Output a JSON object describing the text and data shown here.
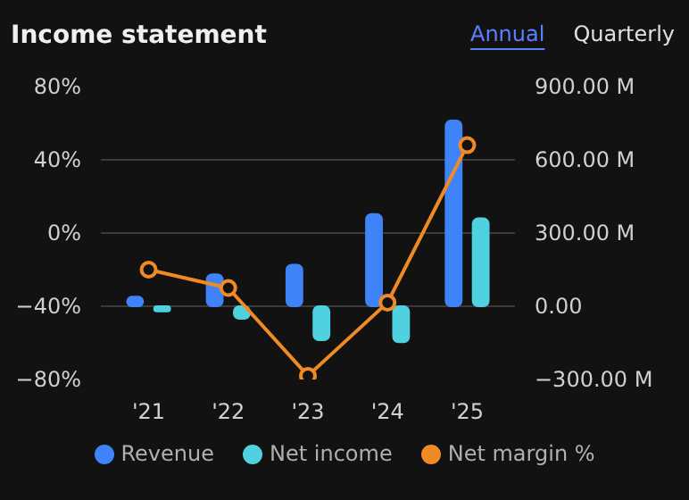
{
  "chart_data": {
    "type": "bar",
    "title": "Income statement",
    "annotations": [
      "Annual",
      "Quarterly"
    ],
    "categories": [
      "'21",
      "'22",
      "'23",
      "'24",
      "'25"
    ],
    "series": [
      {
        "name": "Revenue",
        "color": "#3f83f8",
        "axis": "y2",
        "values": [
          39,
          131,
          170,
          378,
          761
        ]
      },
      {
        "name": "Net income",
        "color": "#4fd1e0",
        "axis": "y2",
        "values": [
          -21,
          -51,
          -139,
          -147,
          360
        ]
      },
      {
        "name": "Net margin %",
        "color": "#f08a24",
        "type": "line",
        "values": [
          -20,
          -30,
          -78,
          -38,
          48
        ]
      }
    ],
    "ylim": [
      -80,
      80
    ],
    "yticks": [
      {
        "value": 80,
        "label": "80%"
      },
      {
        "value": 40,
        "label": "40%"
      },
      {
        "value": 0,
        "label": "0%"
      },
      {
        "value": -40,
        "label": "−40%"
      },
      {
        "value": -80,
        "label": "−80%"
      }
    ],
    "y2lim": [
      -300,
      900
    ],
    "y2ticks": [
      {
        "value": 900,
        "label": "900.00 M"
      },
      {
        "value": 600,
        "label": "600.00 M"
      },
      {
        "value": 300,
        "label": "300.00 M"
      },
      {
        "value": 0,
        "label": "0.00"
      },
      {
        "value": -300,
        "label": "−300.00 M"
      }
    ],
    "grid": "y",
    "legend": "bottom",
    "marker": "circle",
    "line_style": "solid"
  }
}
